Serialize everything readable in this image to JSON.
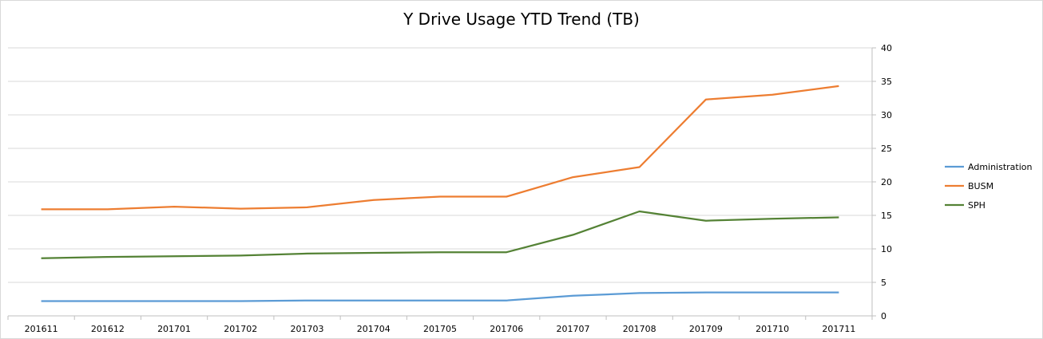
{
  "chart_data": {
    "type": "line",
    "title": "Y Drive Usage YTD Trend (TB)",
    "xlabel": "",
    "ylabel": "",
    "categories": [
      "201611",
      "201612",
      "201701",
      "201702",
      "201703",
      "201704",
      "201705",
      "201706",
      "201707",
      "201708",
      "201709",
      "201710",
      "201711"
    ],
    "ylim": [
      0,
      40
    ],
    "yticks": [
      0,
      5,
      10,
      15,
      20,
      25,
      30,
      35,
      40
    ],
    "y_axis_side": "right",
    "grid": true,
    "legend_position": "right",
    "series": [
      {
        "name": "Administration",
        "color": "#5b9bd5",
        "values": [
          2.2,
          2.2,
          2.2,
          2.2,
          2.3,
          2.3,
          2.3,
          2.3,
          3.0,
          3.4,
          3.5,
          3.5,
          3.5
        ]
      },
      {
        "name": "BUSM",
        "color": "#ed7d31",
        "values": [
          15.9,
          15.9,
          16.3,
          16.0,
          16.2,
          17.3,
          17.8,
          17.8,
          20.7,
          22.2,
          32.3,
          33.0,
          34.3
        ]
      },
      {
        "name": "SPH",
        "color": "#548235",
        "values": [
          8.6,
          8.8,
          8.9,
          9.0,
          9.3,
          9.4,
          9.5,
          9.5,
          12.1,
          15.6,
          14.2,
          14.5,
          14.7
        ]
      }
    ]
  }
}
